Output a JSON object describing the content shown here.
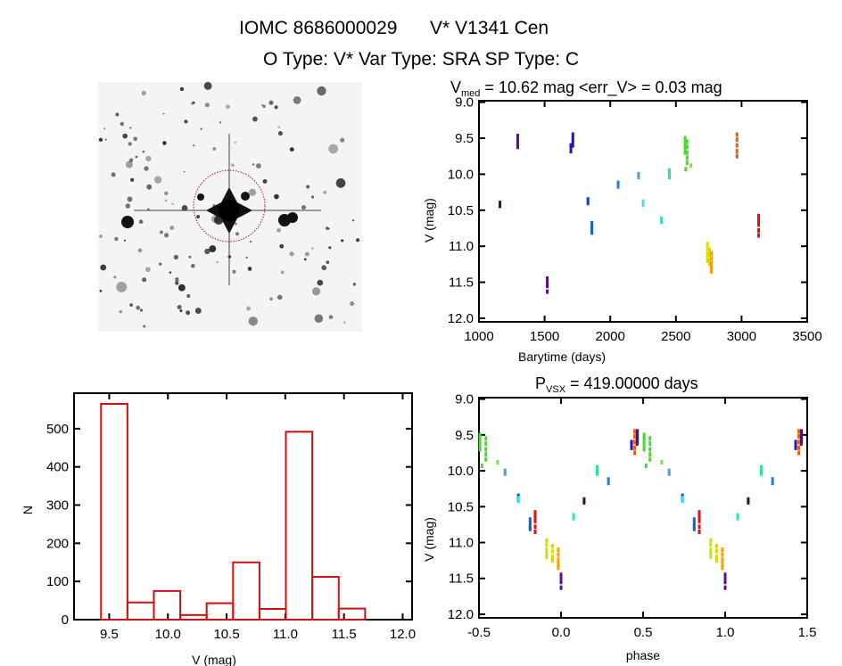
{
  "header": {
    "title_left": "IOMC 8686000029",
    "title_right": "V* V1341 Cen",
    "subtitle": "O Type: V*  Var Type: SRA  SP Type: C"
  },
  "colors": {
    "histogram": "#d01010",
    "circle": "#c01010"
  },
  "chart_data": [
    {
      "type": "scatter",
      "name": "light-curve",
      "title_main": "V",
      "title_sub": "med",
      "title_rest": " = 10.62 mag <err_V> = 0.03 mag",
      "xlabel": "Barytime (days)",
      "ylabel": "V (mag)",
      "xlim": [
        1000,
        3500
      ],
      "ylim": [
        8.98,
        12.05
      ],
      "y_inverted": true,
      "xticks": [
        "1000",
        "1500",
        "2000",
        "2500",
        "3000",
        "3500"
      ],
      "yticks": [
        "9.0",
        "9.5",
        "10.0",
        "10.5",
        "11.0",
        "11.5",
        "12.0"
      ],
      "groups": [
        {
          "t": 1160,
          "m": [
            10.4,
            10.44
          ],
          "c": "#3a0a3a"
        },
        {
          "t": 1295,
          "m": [
            9.47,
            9.52,
            9.57,
            9.62
          ],
          "c": "#5a1080"
        },
        {
          "t": 1520,
          "m": [
            11.45,
            11.5,
            11.55,
            11.63
          ],
          "c": "#5a1090"
        },
        {
          "t": 1700,
          "m": [
            9.6,
            9.64,
            9.68
          ],
          "c": "#3010c0"
        },
        {
          "t": 1715,
          "m": [
            9.45,
            9.5,
            9.55,
            9.6
          ],
          "c": "#3010c0"
        },
        {
          "t": 1830,
          "m": [
            10.35,
            10.4
          ],
          "c": "#1040c8"
        },
        {
          "t": 1860,
          "m": [
            10.68,
            10.73,
            10.78,
            10.81
          ],
          "c": "#1060d8"
        },
        {
          "t": 2060,
          "m": [
            10.12,
            10.17
          ],
          "c": "#2080e0"
        },
        {
          "t": 2215,
          "m": [
            10.0,
            10.04
          ],
          "c": "#40a8d8"
        },
        {
          "t": 2250,
          "m": [
            10.38,
            10.42
          ],
          "c": "#40e0e8"
        },
        {
          "t": 2390,
          "m": [
            10.62,
            10.66
          ],
          "c": "#30e0c0"
        },
        {
          "t": 2450,
          "m": [
            9.95,
            10.0,
            10.04
          ],
          "c": "#30e090"
        },
        {
          "t": 2570,
          "m": [
            9.5,
            9.55,
            9.6,
            9.65,
            9.7
          ],
          "c": "#40e020"
        },
        {
          "t": 2585,
          "m": [
            9.55,
            9.62,
            9.7,
            9.77,
            9.84
          ],
          "c": "#40e020"
        },
        {
          "t": 2575,
          "m": [
            9.93
          ],
          "c": "#40e020"
        },
        {
          "t": 2615,
          "m": [
            9.88
          ],
          "c": "#80e040"
        },
        {
          "t": 2740,
          "m": [
            10.97,
            11.03,
            11.1,
            11.16,
            11.2
          ],
          "c": "#c8e800"
        },
        {
          "t": 2755,
          "m": [
            11.05,
            11.12,
            11.2,
            11.25
          ],
          "c": "#e8d000"
        },
        {
          "t": 2770,
          "m": [
            11.1,
            11.17,
            11.24,
            11.3,
            11.35
          ],
          "c": "#f0a000"
        },
        {
          "t": 2965,
          "m": [
            9.45,
            9.52,
            9.6,
            9.68,
            9.75
          ],
          "c": "#e06010"
        },
        {
          "t": 3130,
          "m": [
            10.58,
            10.64,
            10.7,
            10.78,
            10.85
          ],
          "c": "#e01010"
        }
      ]
    },
    {
      "type": "bar",
      "name": "histogram",
      "xlabel": "V (mag)",
      "ylabel": "N",
      "xlim": [
        9.2,
        12.08
      ],
      "ylim": [
        0,
        593
      ],
      "xticks": [
        "9.5",
        "10.0",
        "10.5",
        "11.0",
        "11.5",
        "12.0"
      ],
      "yticks": [
        "0",
        "100",
        "200",
        "300",
        "400",
        "500"
      ],
      "bin_start": 9.43,
      "bin_width": 0.225,
      "values": [
        565,
        45,
        75,
        12,
        43,
        150,
        28,
        492,
        112,
        29
      ]
    },
    {
      "type": "scatter",
      "name": "phased-curve",
      "title_main": "P",
      "title_sub": "VSX",
      "title_rest": " = 419.00000 days",
      "period": 419.0,
      "epoch": 1520,
      "xlabel": "phase",
      "ylabel": "V (mag)",
      "xlim": [
        -0.5,
        1.5
      ],
      "ylim": [
        8.98,
        12.05
      ],
      "y_inverted": true,
      "xticks": [
        "-0.5",
        "0.0",
        "0.5",
        "1.0",
        "1.5"
      ],
      "yticks": [
        "9.0",
        "9.5",
        "10.0",
        "10.5",
        "11.0",
        "11.5",
        "12.0"
      ]
    }
  ]
}
